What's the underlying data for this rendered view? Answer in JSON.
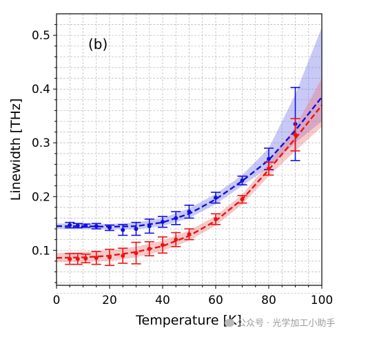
{
  "chart_data": {
    "type": "line",
    "panel_label": "(b)",
    "xlabel": "Temperature [K]",
    "ylabel": "Linewidth [THz]",
    "xlim": [
      0,
      100
    ],
    "ylim": [
      0.035,
      0.54
    ],
    "x_ticks": [
      "0",
      "20",
      "40",
      "60",
      "80",
      "100"
    ],
    "y_ticks": [
      "0.1",
      "0.2",
      "0.3",
      "0.4",
      "0.5"
    ],
    "grid": true,
    "colors": {
      "blue": "#1010dd",
      "red": "#ee1111",
      "blue_band": "#7777ee",
      "red_band": "#ee7777"
    },
    "series": [
      {
        "color": "blue",
        "points": [
          {
            "x": 5,
            "y": 0.147,
            "err": 0.005
          },
          {
            "x": 8,
            "y": 0.146,
            "err": 0.004
          },
          {
            "x": 11,
            "y": 0.146,
            "err": 0.003
          },
          {
            "x": 15,
            "y": 0.145,
            "err": 0.005
          },
          {
            "x": 20,
            "y": 0.142,
            "err": 0.005
          },
          {
            "x": 25,
            "y": 0.138,
            "err": 0.01
          },
          {
            "x": 30,
            "y": 0.14,
            "err": 0.012
          },
          {
            "x": 35,
            "y": 0.145,
            "err": 0.013
          },
          {
            "x": 40,
            "y": 0.153,
            "err": 0.01
          },
          {
            "x": 45,
            "y": 0.16,
            "err": 0.012
          },
          {
            "x": 50,
            "y": 0.172,
            "err": 0.012
          },
          {
            "x": 60,
            "y": 0.198,
            "err": 0.01
          },
          {
            "x": 70,
            "y": 0.23,
            "err": 0.008
          },
          {
            "x": 80,
            "y": 0.27,
            "err": 0.02
          },
          {
            "x": 90,
            "y": 0.335,
            "err": 0.068
          }
        ],
        "fit": [
          {
            "x": 0,
            "y": 0.145
          },
          {
            "x": 10,
            "y": 0.145
          },
          {
            "x": 20,
            "y": 0.144
          },
          {
            "x": 30,
            "y": 0.145
          },
          {
            "x": 40,
            "y": 0.152
          },
          {
            "x": 50,
            "y": 0.168
          },
          {
            "x": 60,
            "y": 0.195
          },
          {
            "x": 70,
            "y": 0.229
          },
          {
            "x": 80,
            "y": 0.268
          },
          {
            "x": 90,
            "y": 0.323
          },
          {
            "x": 100,
            "y": 0.385
          }
        ],
        "band": [
          {
            "x": 0,
            "lo": 0.14,
            "hi": 0.15
          },
          {
            "x": 20,
            "lo": 0.139,
            "hi": 0.149
          },
          {
            "x": 30,
            "lo": 0.139,
            "hi": 0.152
          },
          {
            "x": 40,
            "lo": 0.145,
            "hi": 0.16
          },
          {
            "x": 50,
            "lo": 0.16,
            "hi": 0.178
          },
          {
            "x": 60,
            "lo": 0.186,
            "hi": 0.205
          },
          {
            "x": 70,
            "lo": 0.22,
            "hi": 0.24
          },
          {
            "x": 80,
            "lo": 0.255,
            "hi": 0.29
          },
          {
            "x": 90,
            "lo": 0.3,
            "hi": 0.39
          },
          {
            "x": 100,
            "lo": 0.34,
            "hi": 0.515
          }
        ]
      },
      {
        "color": "red",
        "points": [
          {
            "x": 5,
            "y": 0.084,
            "err": 0.01
          },
          {
            "x": 8,
            "y": 0.084,
            "err": 0.01
          },
          {
            "x": 11,
            "y": 0.085,
            "err": 0.008
          },
          {
            "x": 15,
            "y": 0.086,
            "err": 0.012
          },
          {
            "x": 20,
            "y": 0.087,
            "err": 0.015
          },
          {
            "x": 25,
            "y": 0.09,
            "err": 0.014
          },
          {
            "x": 30,
            "y": 0.095,
            "err": 0.02
          },
          {
            "x": 35,
            "y": 0.103,
            "err": 0.013
          },
          {
            "x": 40,
            "y": 0.11,
            "err": 0.015
          },
          {
            "x": 45,
            "y": 0.12,
            "err": 0.013
          },
          {
            "x": 50,
            "y": 0.13,
            "err": 0.01
          },
          {
            "x": 60,
            "y": 0.158,
            "err": 0.01
          },
          {
            "x": 70,
            "y": 0.195,
            "err": 0.007
          },
          {
            "x": 80,
            "y": 0.252,
            "err": 0.012
          },
          {
            "x": 90,
            "y": 0.315,
            "err": 0.03
          }
        ],
        "fit": [
          {
            "x": 0,
            "y": 0.086
          },
          {
            "x": 10,
            "y": 0.087
          },
          {
            "x": 20,
            "y": 0.09
          },
          {
            "x": 30,
            "y": 0.097
          },
          {
            "x": 40,
            "y": 0.108
          },
          {
            "x": 50,
            "y": 0.127
          },
          {
            "x": 60,
            "y": 0.155
          },
          {
            "x": 70,
            "y": 0.195
          },
          {
            "x": 80,
            "y": 0.25
          },
          {
            "x": 90,
            "y": 0.308
          },
          {
            "x": 100,
            "y": 0.37
          }
        ],
        "band": [
          {
            "x": 0,
            "lo": 0.078,
            "hi": 0.095
          },
          {
            "x": 20,
            "lo": 0.08,
            "hi": 0.1
          },
          {
            "x": 30,
            "lo": 0.087,
            "hi": 0.107
          },
          {
            "x": 40,
            "lo": 0.099,
            "hi": 0.118
          },
          {
            "x": 50,
            "lo": 0.118,
            "hi": 0.137
          },
          {
            "x": 60,
            "lo": 0.146,
            "hi": 0.164
          },
          {
            "x": 70,
            "lo": 0.186,
            "hi": 0.204
          },
          {
            "x": 80,
            "lo": 0.238,
            "hi": 0.262
          },
          {
            "x": 90,
            "lo": 0.285,
            "hi": 0.33
          },
          {
            "x": 100,
            "lo": 0.33,
            "hi": 0.42
          }
        ]
      }
    ]
  },
  "watermark": "公众号 · 光学加工小助手"
}
